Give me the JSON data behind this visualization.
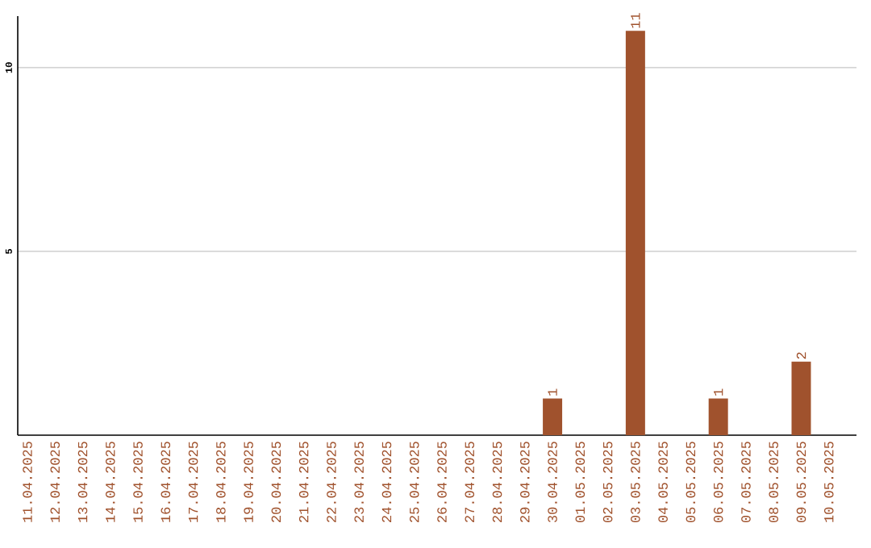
{
  "chart_data": {
    "type": "bar",
    "categories": [
      "11.04.2025",
      "12.04.2025",
      "13.04.2025",
      "14.04.2025",
      "15.04.2025",
      "16.04.2025",
      "17.04.2025",
      "18.04.2025",
      "19.04.2025",
      "20.04.2025",
      "21.04.2025",
      "22.04.2025",
      "23.04.2025",
      "24.04.2025",
      "25.04.2025",
      "26.04.2025",
      "27.04.2025",
      "28.04.2025",
      "29.04.2025",
      "30.04.2025",
      "01.05.2025",
      "02.05.2025",
      "03.05.2025",
      "04.05.2025",
      "05.05.2025",
      "06.05.2025",
      "07.05.2025",
      "08.05.2025",
      "09.05.2025",
      "10.05.2025"
    ],
    "values": [
      0,
      0,
      0,
      0,
      0,
      0,
      0,
      0,
      0,
      0,
      0,
      0,
      0,
      0,
      0,
      0,
      0,
      0,
      0,
      1,
      0,
      0,
      11,
      0,
      0,
      1,
      0,
      0,
      2,
      0
    ],
    "value_labels": [
      null,
      null,
      null,
      null,
      null,
      null,
      null,
      null,
      null,
      null,
      null,
      null,
      null,
      null,
      null,
      null,
      null,
      null,
      null,
      "1",
      null,
      null,
      "11",
      null,
      null,
      "1",
      null,
      null,
      "2",
      null
    ],
    "color": "#a0522d",
    "ylim": [
      0,
      11.4
    ],
    "yticks": [
      5,
      10
    ],
    "grid": "y"
  }
}
